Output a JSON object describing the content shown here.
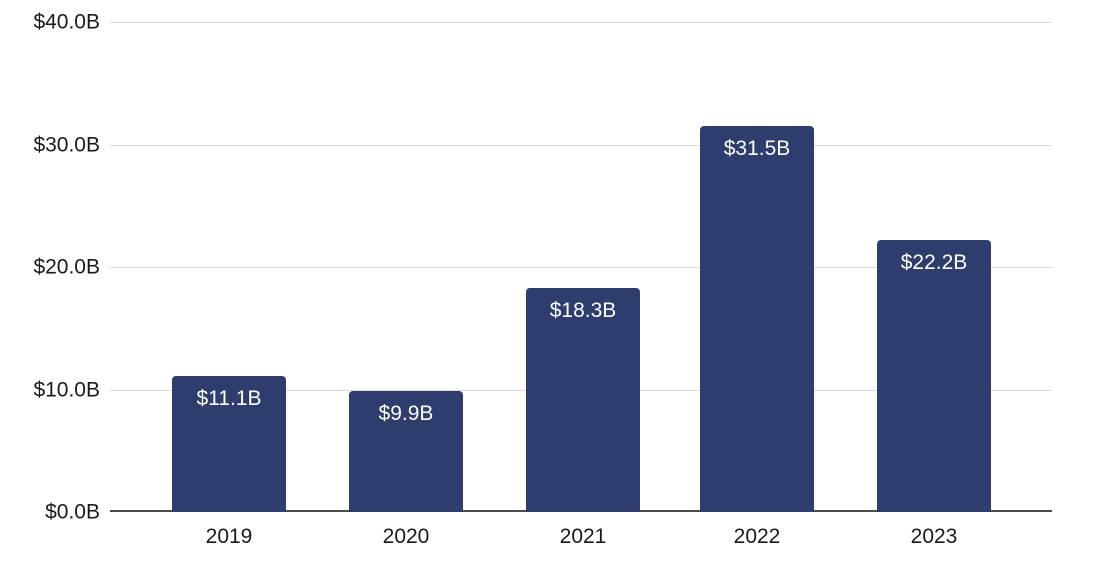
{
  "chart_data": {
    "type": "bar",
    "categories": [
      "2019",
      "2020",
      "2021",
      "2022",
      "2023"
    ],
    "values": [
      11.1,
      9.9,
      18.3,
      31.5,
      22.2
    ],
    "value_labels": [
      "$11.1B",
      "$9.9B",
      "$18.3B",
      "$31.5B",
      "$22.2B"
    ],
    "y_ticks": [
      "$0.0B",
      "$10.0B",
      "$20.0B",
      "$30.0B",
      "$40.0B"
    ],
    "ylim": [
      0,
      40
    ],
    "y_tick_step": 10,
    "grid": true,
    "legend": "none",
    "value_label_position": "inside-top",
    "colors": {
      "bar": "#2e3d6e",
      "gridline": "#d9d9d9",
      "axis_line": "#4c4c4c",
      "tick_text": "#1a1a1a",
      "value_label_text": "#ffffff",
      "background": "#ffffff"
    }
  }
}
